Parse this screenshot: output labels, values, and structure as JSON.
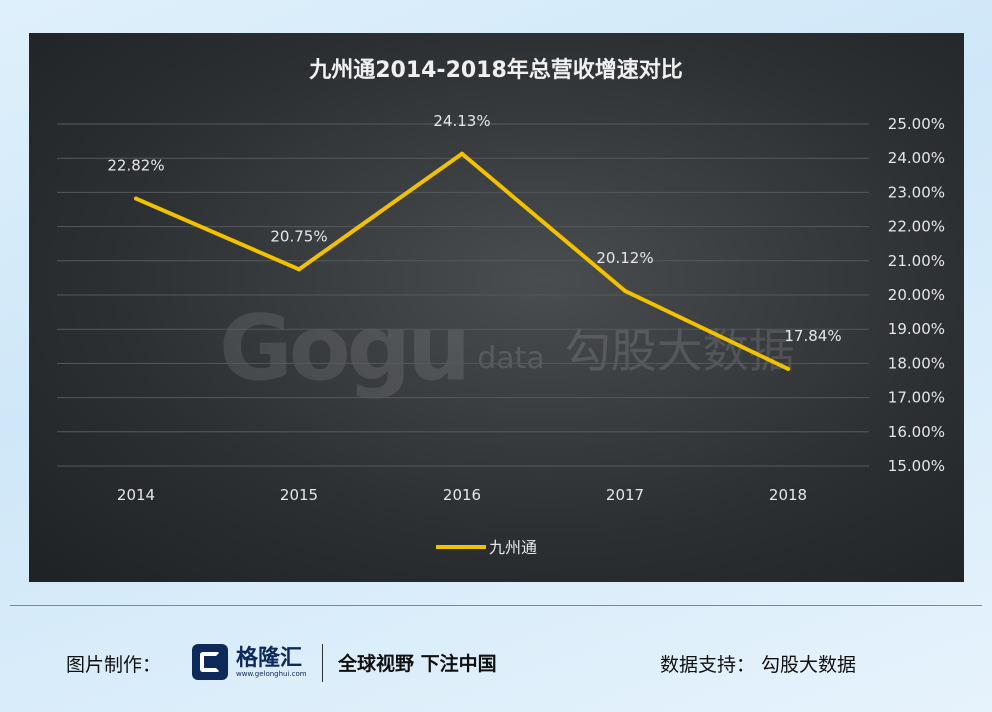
{
  "chart_data": {
    "type": "line",
    "title": "九州通2014-2018年总营收增速对比",
    "categories": [
      "2014",
      "2015",
      "2016",
      "2017",
      "2018"
    ],
    "series": [
      {
        "name": "九州通",
        "values": [
          22.82,
          20.75,
          24.13,
          20.12,
          17.84
        ],
        "color": "#f2c100"
      }
    ],
    "data_labels": [
      "22.82%",
      "20.75%",
      "24.13%",
      "20.12%",
      "17.84%"
    ],
    "y_axis": {
      "position": "right",
      "ylim": [
        15,
        25
      ],
      "ticks": [
        "25.00%",
        "24.00%",
        "23.00%",
        "22.00%",
        "21.00%",
        "20.00%",
        "19.00%",
        "18.00%",
        "17.00%",
        "16.00%",
        "15.00%"
      ]
    },
    "grid": true,
    "legend": "bottom"
  },
  "watermark": {
    "logo": "Gogu",
    "data": "data",
    "cn": "勾股大数据"
  },
  "footer": {
    "left_label": "图片制作：",
    "brand_name": "格隆汇",
    "brand_url": "www.gelonghui.com",
    "slogan": "全球视野 下注中国",
    "right_label": "数据支持：  勾股大数据"
  },
  "colors": {
    "panel_bg": "#2c2f32",
    "line": "#f2c100",
    "text": "#e6e6e6",
    "grid": "#55595d"
  }
}
